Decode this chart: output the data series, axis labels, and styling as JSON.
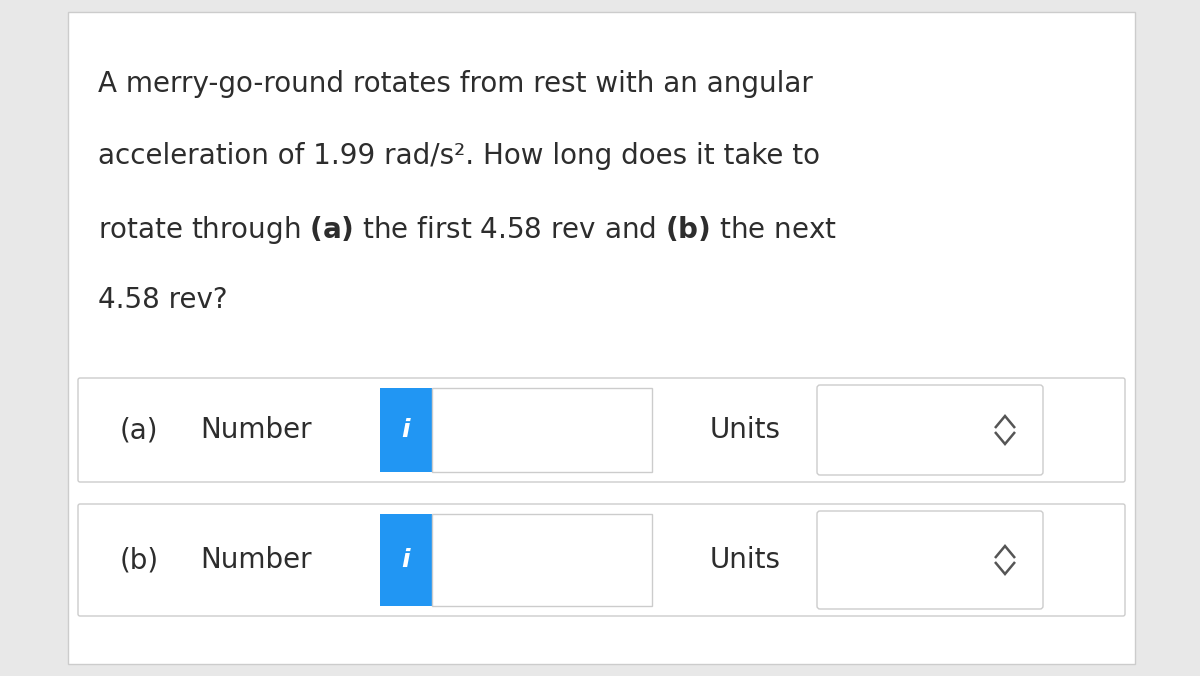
{
  "bg_color": "#e8e8e8",
  "white": "#ffffff",
  "text_color": "#2d2d2d",
  "border_color": "#cccccc",
  "blue_btn_color": "#2196F3",
  "blue_btn_text": "#ffffff",
  "arrow_color": "#555555",
  "line1": "A merry-go-round rotates from rest with an angular",
  "line2": "acceleration of 1.99 rad/s². How long does it take to",
  "line3_pre": "rotate through ",
  "line3_a": "(a)",
  "line3_mid": " the first 4.58 rev and ",
  "line3_b": "(b)",
  "line3_post": " the next",
  "line4": "4.58 rev?",
  "label_a": "(a)",
  "label_b": "(b)",
  "number_text": "Number",
  "units_text": "Units",
  "info_char": "i",
  "q_fontsize": 20,
  "row_fontsize": 20,
  "info_fontsize": 18
}
